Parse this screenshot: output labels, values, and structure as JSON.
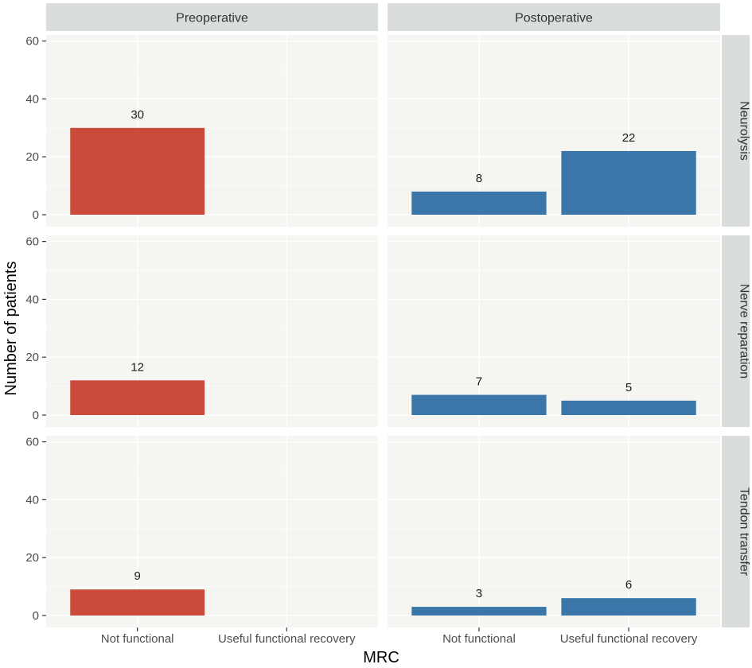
{
  "chart_data": {
    "type": "bar",
    "xlabel": "MRC",
    "ylabel": "Number of patients",
    "ylim": [
      0,
      65
    ],
    "yticks": [
      0,
      20,
      40,
      60
    ],
    "categories": [
      "Not functional",
      "Useful functional recovery"
    ],
    "column_facets": [
      "Preoperative",
      "Postoperative"
    ],
    "row_facets": [
      "Neurolysis",
      "Nerve reparation",
      "Tendon transfer"
    ],
    "colors": {
      "Preoperative": "#cc4a3c",
      "Postoperative": "#3a76a8"
    },
    "panels": [
      {
        "row": "Neurolysis",
        "column": "Preoperative",
        "values": [
          30,
          null
        ]
      },
      {
        "row": "Neurolysis",
        "column": "Postoperative",
        "values": [
          8,
          22
        ]
      },
      {
        "row": "Nerve reparation",
        "column": "Preoperative",
        "values": [
          12,
          null
        ]
      },
      {
        "row": "Nerve reparation",
        "column": "Postoperative",
        "values": [
          7,
          5
        ]
      },
      {
        "row": "Tendon transfer",
        "column": "Preoperative",
        "values": [
          9,
          null
        ]
      },
      {
        "row": "Tendon transfer",
        "column": "Postoperative",
        "values": [
          3,
          6
        ]
      }
    ]
  }
}
